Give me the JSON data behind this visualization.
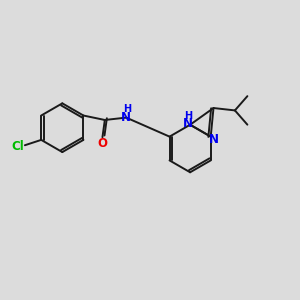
{
  "background_color": "#dcdcdc",
  "bond_color": "#1a1a1a",
  "atom_colors": {
    "Cl": "#00bb00",
    "O": "#ee0000",
    "N": "#0000ee",
    "H": "#0000ee",
    "C": "#1a1a1a"
  },
  "bond_width": 1.4,
  "font_size_atom": 8.5,
  "font_size_small": 7.0
}
